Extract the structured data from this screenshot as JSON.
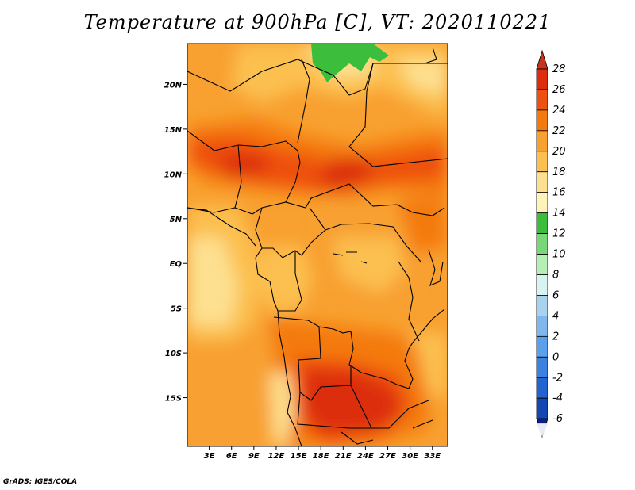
{
  "title": "Temperature at 900hPa [C], VT: 2020110221",
  "credit": "GrADS: IGES/COLA",
  "map": {
    "lon_range": [
      0,
      35
    ],
    "lat_range": [
      -20,
      25
    ],
    "lat_ticks": [
      {
        "label": "20N",
        "value": 20
      },
      {
        "label": "15N",
        "value": 15
      },
      {
        "label": "10N",
        "value": 10
      },
      {
        "label": "5N",
        "value": 5
      },
      {
        "label": "EQ",
        "value": 0
      },
      {
        "label": "5S",
        "value": -5
      },
      {
        "label": "10S",
        "value": -10
      },
      {
        "label": "15S",
        "value": -15
      }
    ],
    "lon_ticks": [
      {
        "label": "3E",
        "value": 3
      },
      {
        "label": "6E",
        "value": 6
      },
      {
        "label": "9E",
        "value": 9
      },
      {
        "label": "12E",
        "value": 12
      },
      {
        "label": "15E",
        "value": 15
      },
      {
        "label": "18E",
        "value": 18
      },
      {
        "label": "21E",
        "value": 21
      },
      {
        "label": "24E",
        "value": 24
      },
      {
        "label": "27E",
        "value": 27
      },
      {
        "label": "30E",
        "value": 30
      },
      {
        "label": "33E",
        "value": 33
      }
    ]
  },
  "colorbar": {
    "levels": [
      "28",
      "26",
      "24",
      "22",
      "20",
      "18",
      "16",
      "14",
      "12",
      "10",
      "8",
      "6",
      "4",
      "2",
      "0",
      "-2",
      "-4",
      "-6"
    ],
    "top_arrow_color": "#c8321e",
    "bottom_arrow_color": "#e8e8f8",
    "colors": [
      "#dc2d0f",
      "#ee5010",
      "#f47a10",
      "#f8a030",
      "#fcc050",
      "#fde090",
      "#fff3b8",
      "#3cbe3c",
      "#78d878",
      "#b4f0b4",
      "#d8f4f0",
      "#a8d2f0",
      "#80b8ee",
      "#5aa0ec",
      "#3c82e0",
      "#2464d0",
      "#1446b4",
      "#0a1e82"
    ]
  }
}
